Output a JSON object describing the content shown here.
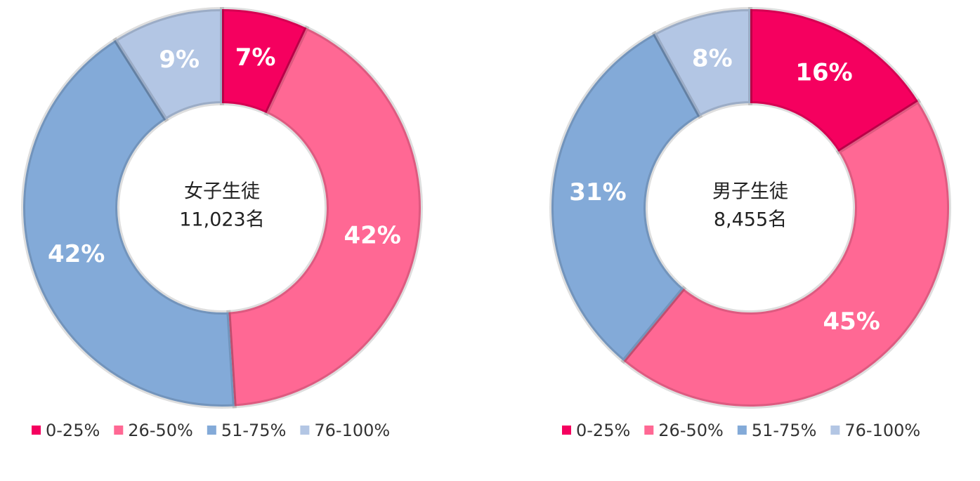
{
  "chart_data": [
    {
      "type": "donut",
      "center_title": "女子生徒",
      "center_subtitle": "11,023名",
      "categories": [
        "0-25%",
        "26-50%",
        "51-75%",
        "76-100%"
      ],
      "values": [
        7,
        42,
        42,
        9
      ],
      "value_labels": [
        "7%",
        "42%",
        "42%",
        "9%"
      ],
      "colors": [
        "#f5005f",
        "#ff6894",
        "#83aad8",
        "#b3c6e4"
      ],
      "legend": "bottom"
    },
    {
      "type": "donut",
      "center_title": "男子生徒",
      "center_subtitle": "8,455名",
      "categories": [
        "0-25%",
        "26-50%",
        "51-75%",
        "76-100%"
      ],
      "values": [
        16,
        45,
        31,
        8
      ],
      "value_labels": [
        "16%",
        "45%",
        "31%",
        "8%"
      ],
      "colors": [
        "#f5005f",
        "#ff6894",
        "#83aad8",
        "#b3c6e4"
      ],
      "legend": "bottom"
    }
  ]
}
